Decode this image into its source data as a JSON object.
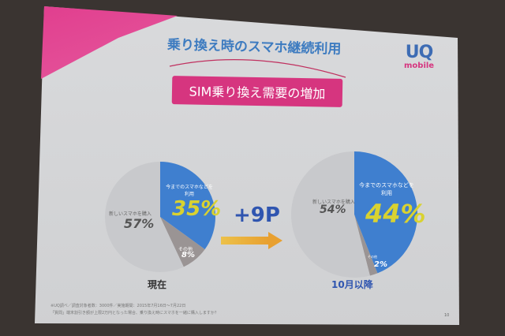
{
  "slide": {
    "title": "乗り換え時のスマホ継続利用",
    "badge": "SIM乗り換え需要の増加",
    "logo": {
      "main": "UQ",
      "sub": "mobile"
    },
    "change": "+9P",
    "footnotes": [
      "※UQ調べ／調査対象者数：3000件／実施期間：2015年7月16日～7月22日",
      "「質問」端末割引き額が上限2万円となった場合、乗り換え時にスマホを一緒に購入しますか？"
    ],
    "page_number": "10"
  },
  "chart_data": [
    {
      "type": "pie",
      "caption": "現在",
      "labels": [
        "今までのスマホなどを利用",
        "その他",
        "新しいスマホを購入"
      ],
      "values": [
        35,
        8,
        57
      ],
      "value_labels": [
        "35%",
        "8%",
        "57%"
      ],
      "colors": [
        "#3f7fcf",
        "#9a9494",
        "#c8c9cc"
      ]
    },
    {
      "type": "pie",
      "caption": "10月以降",
      "labels": [
        "今までのスマホなどを利用",
        "その他",
        "新しいスマホを購入"
      ],
      "values": [
        44,
        2,
        54
      ],
      "value_labels": [
        "44%",
        "2%",
        "54%"
      ],
      "colors": [
        "#3f7fcf",
        "#9a9494",
        "#c8c9cc"
      ]
    }
  ]
}
